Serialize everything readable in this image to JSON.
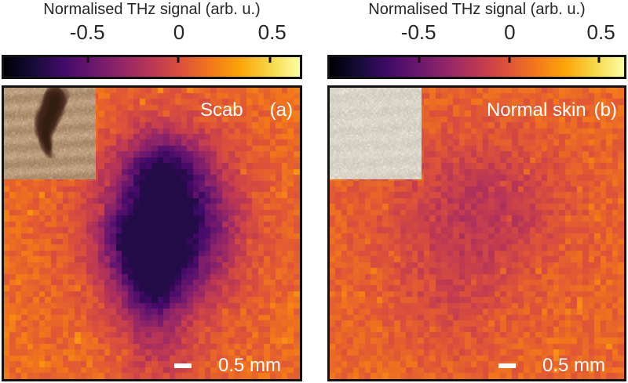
{
  "panels": [
    {
      "colorbar_title": "Normalised THz signal (arb. u.)",
      "ticks": [
        {
          "label": "-0.5",
          "pos": 0.285
        },
        {
          "label": "0",
          "pos": 0.59
        },
        {
          "label": "0.5",
          "pos": 0.9
        }
      ],
      "label": "Scab",
      "letter": "(a)",
      "scale_bar": "0.5 mm"
    },
    {
      "colorbar_title": "Normalised THz signal (arb. u.)",
      "ticks": [
        {
          "label": "-0.5",
          "pos": 0.305
        },
        {
          "label": "0",
          "pos": 0.61
        },
        {
          "label": "0.5",
          "pos": 0.915
        }
      ],
      "label": "Normal skin",
      "letter": "(b)",
      "scale_bar": "0.5 mm"
    }
  ],
  "colors": {
    "background": "#ffffff",
    "frame": "#121212",
    "text": "#262626",
    "overlay_text": "#ffffff",
    "scale_bar": "#ffffff"
  },
  "colormap": {
    "name": "inferno",
    "stops": [
      "#000004",
      "#160b39",
      "#420a68",
      "#6a176e",
      "#932667",
      "#bc3754",
      "#dd513a",
      "#f37819",
      "#fca50a",
      "#f6d746",
      "#fcffa4"
    ]
  },
  "insets": [
    {
      "description": "optical photograph of the scab on skin",
      "render": {
        "seed": 5,
        "base": [
          180,
          150,
          118
        ],
        "band": 12,
        "grain": 9,
        "sparkle": 0.08,
        "sparkle_amp": 20,
        "scab": true,
        "scab_color": [
          64,
          43,
          27
        ]
      }
    },
    {
      "description": "optical photograph of normal skin",
      "render": {
        "seed": 11,
        "base": [
          214,
          210,
          198
        ],
        "band": 4,
        "grain": 8,
        "sparkle": 0.2,
        "sparkle_amp": 16,
        "scab": false,
        "scab_color": [
          0,
          0,
          0
        ]
      }
    }
  ],
  "chart_data": [
    {
      "type": "heatmap",
      "title": "Scab (a)",
      "colorbar_label": "Normalised THz signal (arb. u.)",
      "colorbar_tick_values": [
        -0.5,
        0,
        0.5
      ],
      "value_range_displayed": [
        -1.0,
        0.7
      ],
      "grid": [
        50,
        50
      ],
      "scale_bar_mm": 0.5,
      "legend_position": "top colorbar",
      "summary": "Pixelated THz raster scan: orange background signal near +0.15 with a dark purple low-signal region near -0.75 at the centre where the scab is located",
      "render": {
        "seed": 42,
        "base": 0.67,
        "noise": 0.05,
        "speckle": 0.09,
        "speckle_amp": 0.08,
        "clamp": [
          0.13,
          0.85
        ],
        "blobs": [
          {
            "x": 0.56,
            "y": 0.46,
            "rx": 0.18,
            "ry": 0.24,
            "amp": 0.5
          },
          {
            "x": 0.5,
            "y": 0.68,
            "rx": 0.1,
            "ry": 0.16,
            "amp": 0.3
          },
          {
            "x": 0.53,
            "y": 0.28,
            "rx": 0.11,
            "ry": 0.11,
            "amp": 0.22
          },
          {
            "x": 0.44,
            "y": 0.53,
            "rx": 0.11,
            "ry": 0.1,
            "amp": 0.22
          },
          {
            "x": 0.54,
            "y": 0.5,
            "rx": 0.3,
            "ry": 0.35,
            "amp": 0.16
          },
          {
            "x": 0.53,
            "y": 0.95,
            "rx": 0.13,
            "ry": 0.11,
            "amp": 0.1
          }
        ]
      }
    },
    {
      "type": "heatmap",
      "title": "Normal skin (b)",
      "colorbar_label": "Normalised THz signal (arb. u.)",
      "colorbar_tick_values": [
        -0.5,
        0,
        0.5
      ],
      "value_range_displayed": [
        -1.0,
        0.7
      ],
      "grid": [
        50,
        50
      ],
      "scale_bar_mm": 0.5,
      "legend_position": "top colorbar",
      "summary": "Pixelated THz raster scan of normal skin: nearly uniform orange-red signal near +0.1 with only a faint darker haze near the centre",
      "render": {
        "seed": 7,
        "base": 0.655,
        "noise": 0.05,
        "speckle": 0.09,
        "speckle_amp": 0.07,
        "clamp": [
          0.3,
          0.85
        ],
        "blobs": [
          {
            "x": 0.44,
            "y": 0.44,
            "rx": 0.3,
            "ry": 0.28,
            "amp": 0.11
          },
          {
            "x": 0.6,
            "y": 0.4,
            "rx": 0.22,
            "ry": 0.2,
            "amp": 0.07
          },
          {
            "x": 0.42,
            "y": 0.75,
            "rx": 0.18,
            "ry": 0.2,
            "amp": 0.06
          }
        ]
      }
    }
  ]
}
